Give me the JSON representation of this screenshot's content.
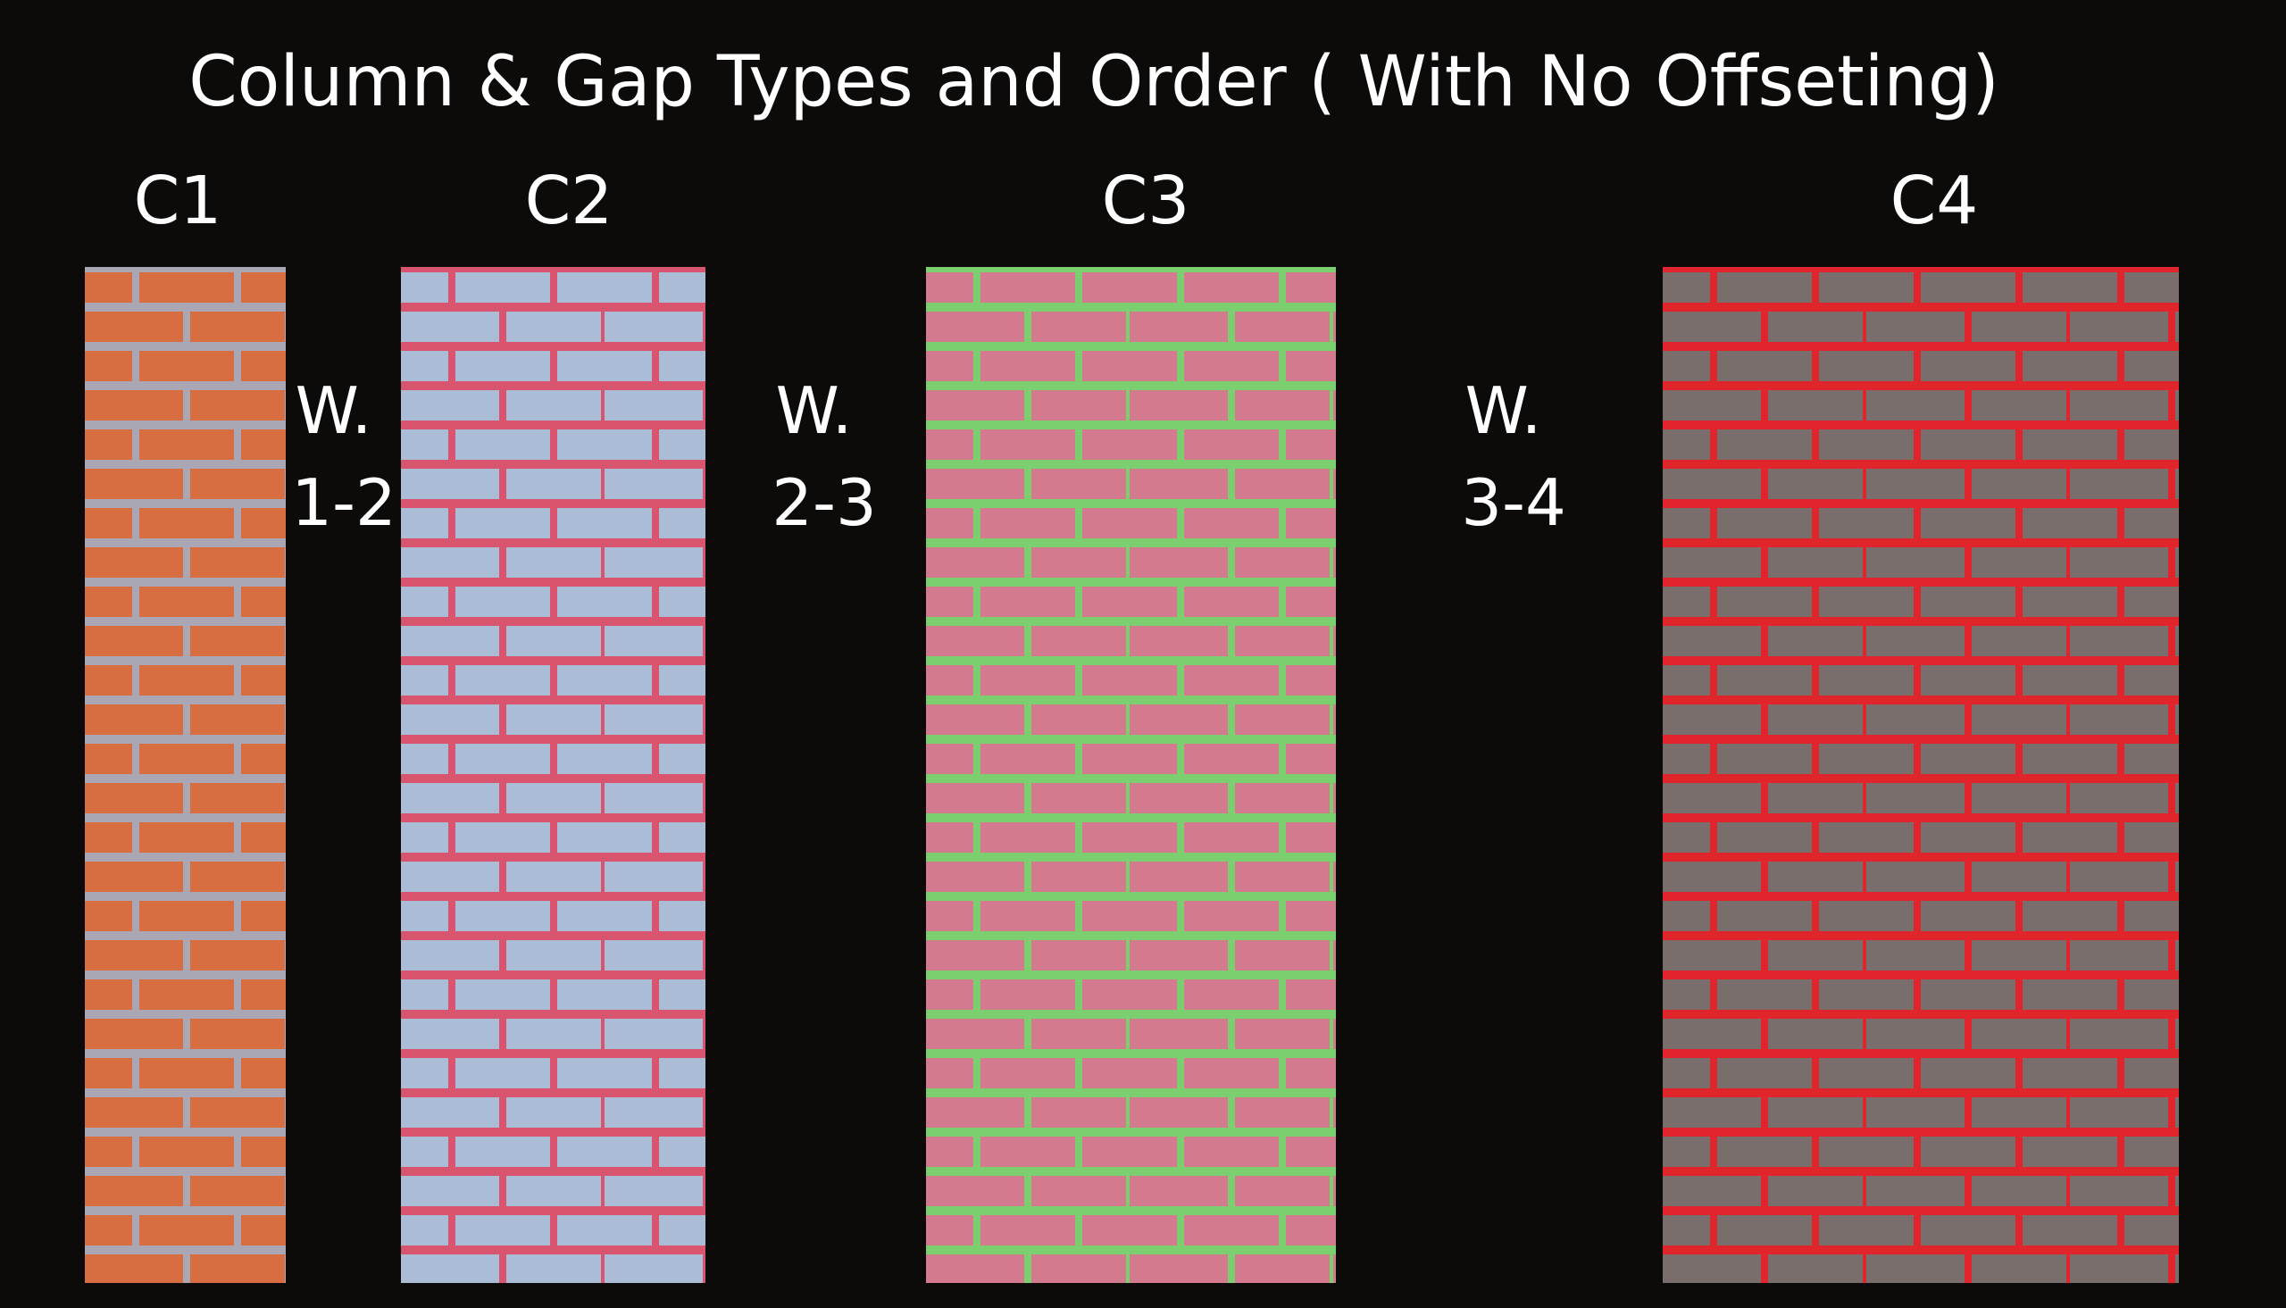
{
  "title": "Column & Gap Types and Order ( With No Offseting)",
  "columns": [
    {
      "label": "C1"
    },
    {
      "label": "C2"
    },
    {
      "label": "C3"
    },
    {
      "label": "C4"
    }
  ],
  "gaps": [
    {
      "lines": [
        "W.",
        "1-2"
      ]
    },
    {
      "lines": [
        "W.",
        "2-3"
      ]
    },
    {
      "lines": [
        "W.",
        "3-4"
      ]
    }
  ]
}
